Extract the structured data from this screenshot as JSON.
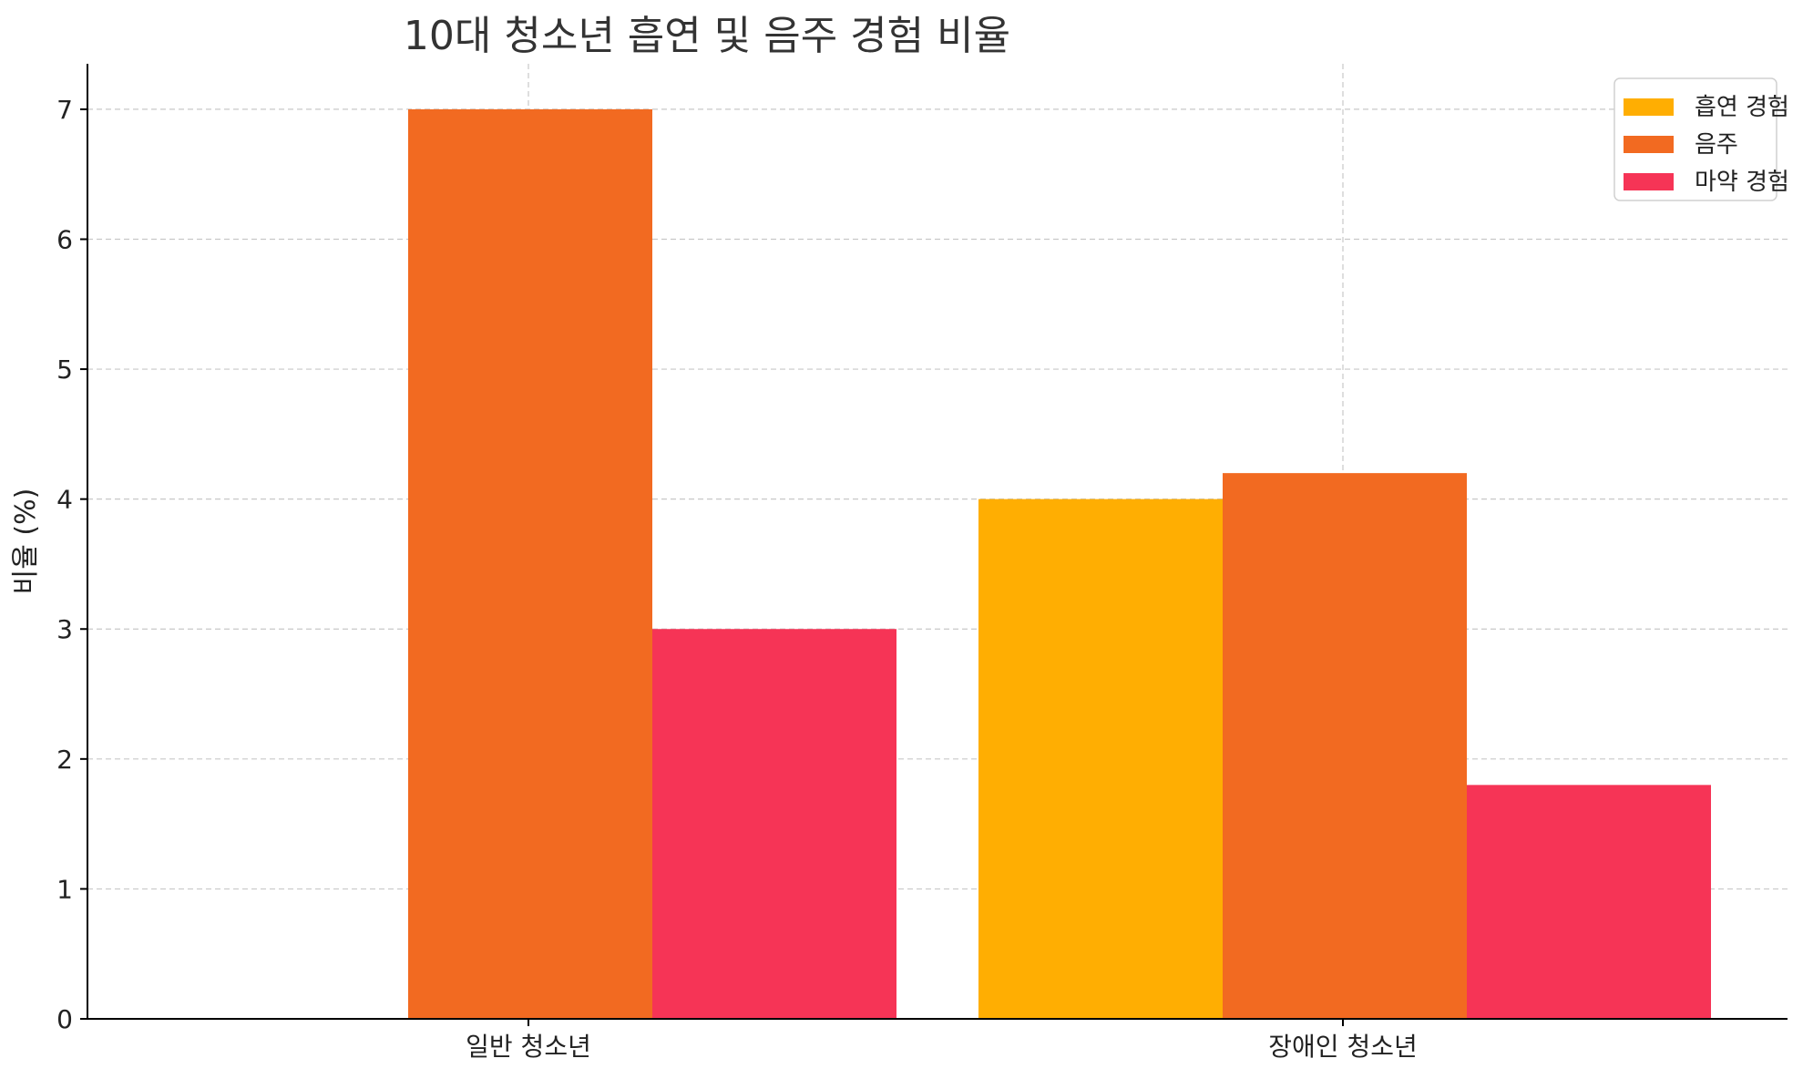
{
  "chart_data": {
    "type": "bar",
    "title": "10대 청소년 흡연 및 음주 경험 비율",
    "xlabel": "",
    "ylabel": "비율 (%)",
    "categories": [
      "일반 청소년",
      "장애인 청소년"
    ],
    "series": [
      {
        "name": "흡연 경험",
        "values": [
          null,
          4.0
        ],
        "color": "#FFAE02"
      },
      {
        "name": "음주",
        "values": [
          7.0,
          4.2
        ],
        "color": "#F26A21"
      },
      {
        "name": "마약 경험",
        "values": [
          3.0,
          1.8
        ],
        "color": "#F63456"
      }
    ],
    "ylim": [
      0,
      7.35
    ],
    "yticks": [
      0,
      1,
      2,
      3,
      4,
      5,
      6,
      7
    ],
    "grid": true,
    "legend_position": "top-right"
  }
}
